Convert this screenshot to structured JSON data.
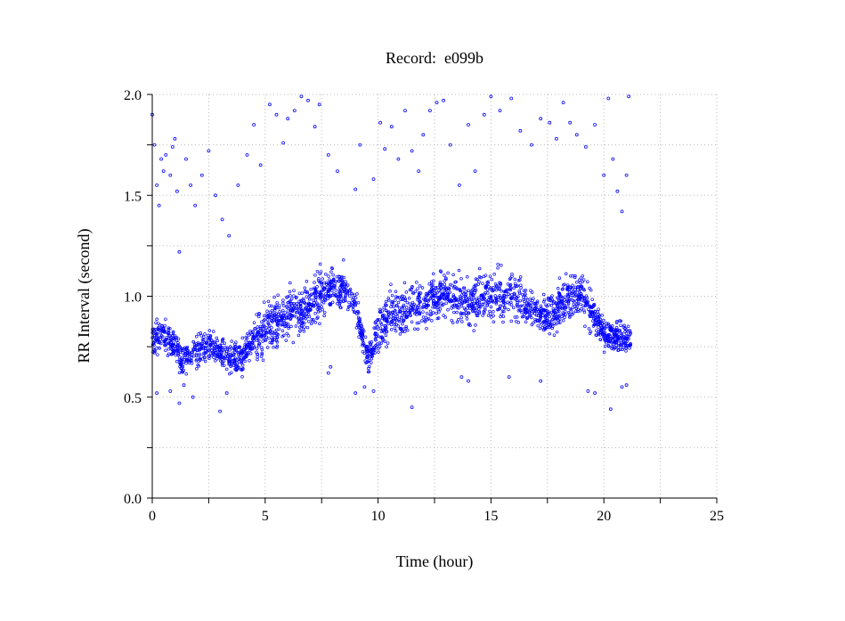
{
  "chart_data": {
    "type": "scatter",
    "title": "Record:  e099b",
    "xlabel": "Time (hour)",
    "ylabel": "RR Interval (second)",
    "xlim": [
      0,
      25
    ],
    "ylim": [
      0.0,
      2.0
    ],
    "x_ticks": [
      "0",
      "5",
      "10",
      "15",
      "20",
      "25"
    ],
    "y_ticks": [
      "0.0",
      "0.5",
      "1.0",
      "1.5",
      "2.0"
    ],
    "grid": true,
    "marker_color": "#0000ff",
    "series": [
      {
        "values_note": "",
        "trend": [
          [
            0.0,
            0.8
          ],
          [
            0.5,
            0.8
          ],
          [
            1.0,
            0.76
          ],
          [
            1.3,
            0.68
          ],
          [
            1.6,
            0.7
          ],
          [
            2.0,
            0.73
          ],
          [
            2.5,
            0.76
          ],
          [
            3.0,
            0.72
          ],
          [
            3.5,
            0.68
          ],
          [
            4.0,
            0.7
          ],
          [
            4.5,
            0.78
          ],
          [
            5.0,
            0.84
          ],
          [
            5.5,
            0.88
          ],
          [
            6.0,
            0.9
          ],
          [
            6.5,
            0.92
          ],
          [
            7.0,
            0.96
          ],
          [
            7.5,
            1.02
          ],
          [
            8.0,
            1.05
          ],
          [
            8.5,
            1.04
          ],
          [
            9.0,
            0.95
          ],
          [
            9.3,
            0.8
          ],
          [
            9.6,
            0.68
          ],
          [
            10.0,
            0.82
          ],
          [
            10.5,
            0.9
          ],
          [
            11.0,
            0.92
          ],
          [
            11.5,
            0.95
          ],
          [
            12.0,
            0.95
          ],
          [
            12.5,
            1.0
          ],
          [
            13.0,
            1.02
          ],
          [
            13.5,
            0.98
          ],
          [
            14.0,
            0.96
          ],
          [
            14.5,
            0.98
          ],
          [
            15.0,
            1.0
          ],
          [
            15.5,
            1.0
          ],
          [
            16.0,
            1.02
          ],
          [
            16.5,
            0.96
          ],
          [
            17.0,
            0.92
          ],
          [
            17.5,
            0.9
          ],
          [
            18.0,
            0.95
          ],
          [
            18.5,
            1.0
          ],
          [
            19.0,
            1.02
          ],
          [
            19.5,
            0.92
          ],
          [
            20.0,
            0.82
          ],
          [
            20.5,
            0.8
          ],
          [
            21.0,
            0.78
          ],
          [
            21.2,
            0.8
          ]
        ],
        "outliers": [
          [
            0.0,
            1.9
          ],
          [
            0.1,
            1.75
          ],
          [
            0.2,
            1.55
          ],
          [
            0.3,
            1.45
          ],
          [
            0.4,
            1.68
          ],
          [
            0.5,
            1.62
          ],
          [
            0.6,
            1.7
          ],
          [
            0.8,
            1.6
          ],
          [
            0.9,
            1.74
          ],
          [
            1.0,
            1.78
          ],
          [
            1.1,
            1.52
          ],
          [
            1.2,
            1.22
          ],
          [
            1.5,
            1.68
          ],
          [
            1.7,
            1.55
          ],
          [
            1.9,
            1.45
          ],
          [
            2.2,
            1.6
          ],
          [
            2.5,
            1.72
          ],
          [
            2.8,
            1.5
          ],
          [
            3.1,
            1.38
          ],
          [
            3.4,
            1.3
          ],
          [
            3.8,
            1.55
          ],
          [
            4.2,
            1.7
          ],
          [
            4.5,
            1.85
          ],
          [
            4.8,
            1.65
          ],
          [
            5.2,
            1.95
          ],
          [
            5.5,
            1.9
          ],
          [
            5.8,
            1.76
          ],
          [
            6.0,
            1.88
          ],
          [
            6.3,
            1.92
          ],
          [
            6.6,
            1.99
          ],
          [
            6.9,
            1.97
          ],
          [
            7.2,
            1.84
          ],
          [
            7.4,
            1.95
          ],
          [
            7.8,
            1.7
          ],
          [
            8.2,
            1.62
          ],
          [
            9.0,
            1.53
          ],
          [
            9.2,
            1.75
          ],
          [
            9.8,
            1.58
          ],
          [
            10.1,
            1.86
          ],
          [
            10.3,
            1.73
          ],
          [
            10.6,
            1.84
          ],
          [
            10.9,
            1.68
          ],
          [
            11.2,
            1.92
          ],
          [
            11.5,
            1.72
          ],
          [
            11.8,
            1.62
          ],
          [
            12.0,
            1.8
          ],
          [
            12.3,
            1.92
          ],
          [
            12.6,
            1.96
          ],
          [
            12.9,
            1.97
          ],
          [
            13.2,
            1.75
          ],
          [
            13.6,
            1.55
          ],
          [
            14.0,
            1.85
          ],
          [
            14.3,
            1.62
          ],
          [
            14.7,
            1.9
          ],
          [
            15.0,
            1.99
          ],
          [
            15.4,
            1.92
          ],
          [
            15.9,
            1.98
          ],
          [
            16.3,
            1.82
          ],
          [
            16.8,
            1.75
          ],
          [
            17.2,
            1.88
          ],
          [
            17.6,
            1.86
          ],
          [
            17.9,
            1.78
          ],
          [
            18.2,
            1.96
          ],
          [
            18.5,
            1.86
          ],
          [
            18.8,
            1.8
          ],
          [
            19.2,
            1.74
          ],
          [
            19.6,
            1.85
          ],
          [
            20.0,
            1.6
          ],
          [
            20.2,
            1.98
          ],
          [
            20.4,
            1.68
          ],
          [
            20.6,
            1.52
          ],
          [
            20.8,
            1.42
          ],
          [
            21.0,
            1.6
          ],
          [
            21.1,
            1.99
          ],
          [
            0.2,
            0.52
          ],
          [
            0.8,
            0.53
          ],
          [
            1.2,
            0.47
          ],
          [
            1.4,
            0.56
          ],
          [
            1.8,
            0.5
          ],
          [
            3.0,
            0.43
          ],
          [
            3.3,
            0.52
          ],
          [
            7.8,
            0.62
          ],
          [
            7.9,
            0.65
          ],
          [
            9.0,
            0.52
          ],
          [
            9.4,
            0.55
          ],
          [
            9.8,
            0.53
          ],
          [
            11.5,
            0.45
          ],
          [
            13.7,
            0.6
          ],
          [
            14.0,
            0.58
          ],
          [
            15.8,
            0.6
          ],
          [
            17.2,
            0.58
          ],
          [
            19.3,
            0.53
          ],
          [
            19.6,
            0.52
          ],
          [
            20.3,
            0.44
          ],
          [
            20.8,
            0.55
          ],
          [
            21.0,
            0.56
          ]
        ]
      }
    ]
  }
}
